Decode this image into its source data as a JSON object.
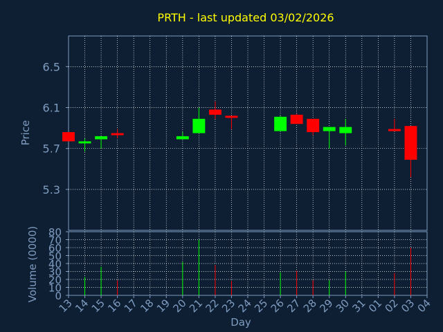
{
  "chart_data": {
    "type": "candlestick",
    "title": "PRTH - last updated 03/02/2026",
    "xlabel": "Day",
    "x_ticks": [
      "13",
      "14",
      "15",
      "16",
      "17",
      "18",
      "19",
      "20",
      "21",
      "22",
      "23",
      "24",
      "25",
      "26",
      "27",
      "28",
      "29",
      "30",
      "31",
      "01",
      "02",
      "03",
      "04"
    ],
    "price_panel": {
      "ylabel": "Price",
      "ylim": [
        4.9,
        6.8
      ],
      "y_ticks": [
        "6.5",
        "6.1",
        "5.7",
        "5.3"
      ],
      "candles": [
        {
          "day": "13",
          "open": 5.86,
          "high": 5.86,
          "low": 5.77,
          "close": 5.77
        },
        {
          "day": "14",
          "open": 5.75,
          "high": 5.8,
          "low": 5.67,
          "close": 5.77
        },
        {
          "day": "15",
          "open": 5.79,
          "high": 5.82,
          "low": 5.7,
          "close": 5.82
        },
        {
          "day": "16",
          "open": 5.85,
          "high": 5.89,
          "low": 5.8,
          "close": 5.84
        },
        {
          "day": "20",
          "open": 5.79,
          "high": 5.86,
          "low": 5.79,
          "close": 5.82
        },
        {
          "day": "21",
          "open": 5.85,
          "high": 6.1,
          "low": 5.85,
          "close": 5.99
        },
        {
          "day": "22",
          "open": 6.08,
          "high": 6.16,
          "low": 5.99,
          "close": 6.03
        },
        {
          "day": "23",
          "open": 6.02,
          "high": 6.02,
          "low": 5.89,
          "close": 6.0
        },
        {
          "day": "26",
          "open": 5.87,
          "high": 6.02,
          "low": 5.87,
          "close": 6.01
        },
        {
          "day": "27",
          "open": 6.03,
          "high": 6.04,
          "low": 5.94,
          "close": 5.94
        },
        {
          "day": "28",
          "open": 5.99,
          "high": 5.99,
          "low": 5.83,
          "close": 5.86
        },
        {
          "day": "29",
          "open": 5.87,
          "high": 5.91,
          "low": 5.7,
          "close": 5.91
        },
        {
          "day": "30",
          "open": 5.85,
          "high": 5.99,
          "low": 5.73,
          "close": 5.91
        },
        {
          "day": "02",
          "open": 5.89,
          "high": 5.99,
          "low": 5.88,
          "close": 5.88
        },
        {
          "day": "03",
          "open": 5.92,
          "high": 5.92,
          "low": 5.42,
          "close": 5.59
        }
      ]
    },
    "volume_panel": {
      "ylabel": "Volume (0000)",
      "ylim": [
        0,
        80
      ],
      "y_ticks": [
        "80",
        "70",
        "60",
        "50",
        "40",
        "30",
        "20",
        "10",
        "0"
      ],
      "bars": [
        {
          "day": "14",
          "value": 23,
          "color": "#00ff00"
        },
        {
          "day": "15",
          "value": 36,
          "color": "#00ff00"
        },
        {
          "day": "16",
          "value": 19,
          "color": "#ff0000"
        },
        {
          "day": "20",
          "value": 42,
          "color": "#00ff00"
        },
        {
          "day": "21",
          "value": 70,
          "color": "#00ff00"
        },
        {
          "day": "22",
          "value": 38,
          "color": "#ff0000"
        },
        {
          "day": "23",
          "value": 18,
          "color": "#ff0000"
        },
        {
          "day": "26",
          "value": 29,
          "color": "#00ff00"
        },
        {
          "day": "27",
          "value": 31,
          "color": "#ff0000"
        },
        {
          "day": "28",
          "value": 19,
          "color": "#ff0000"
        },
        {
          "day": "29",
          "value": 19,
          "color": "#00ff00"
        },
        {
          "day": "30",
          "value": 30,
          "color": "#00ff00"
        },
        {
          "day": "02",
          "value": 28,
          "color": "#ff0000"
        },
        {
          "day": "03",
          "value": 60,
          "color": "#ff0000"
        }
      ]
    },
    "colors": {
      "background": "#0f1f33",
      "axis": "#7e9cc0",
      "title": "#ffff00",
      "up": "#00ff00",
      "down": "#ff0000",
      "grid": "#ffffff"
    },
    "grid": true
  }
}
